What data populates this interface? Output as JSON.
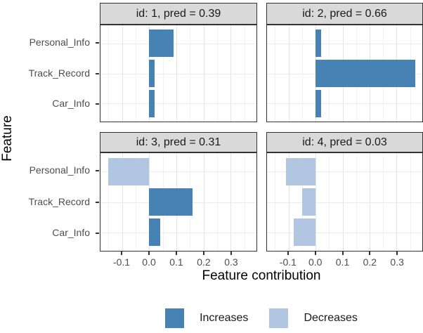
{
  "y_axis_title": "Feature",
  "x_axis_title": "Feature contribution",
  "x_tick_labels": [
    "-0.1",
    "0.0",
    "0.1",
    "0.2",
    "0.3"
  ],
  "colors": {
    "increase": "#4682b4",
    "decrease": "#b1c6e0",
    "strip_bg": "#d9d9d9",
    "border": "#333333",
    "grid_major": "#e4e4e4",
    "grid_minor": "#f2f2f2",
    "axis_text": "#4d4d4d"
  },
  "legend": [
    {
      "label": "Increases",
      "type": "increase"
    },
    {
      "label": "Decreases",
      "type": "decrease"
    }
  ],
  "chart_data": {
    "type": "bar",
    "orientation": "horizontal",
    "title": "",
    "xlabel": "Feature contribution",
    "ylabel": "Feature",
    "categories": [
      "Personal_Info",
      "Track_Record",
      "Car_Info"
    ],
    "x_axis_ticks": [
      -0.1,
      0.0,
      0.1,
      0.2,
      0.3
    ],
    "xlim": [
      -0.1795,
      0.3949
    ],
    "grid": {
      "major": [
        -0.1,
        0.0,
        0.1,
        0.2,
        0.3
      ],
      "minor": [
        -0.15,
        -0.05,
        0.05,
        0.15,
        0.25,
        0.35
      ]
    },
    "legend_position": "bottom",
    "facets": [
      {
        "id": 1,
        "pred": 0.39,
        "title": "id: 1, pred = 0.39",
        "values": [
          0.09,
          0.02,
          0.02
        ]
      },
      {
        "id": 2,
        "pred": 0.66,
        "title": "id: 2, pred = 0.66",
        "values": [
          0.02,
          0.37,
          0.02
        ]
      },
      {
        "id": 3,
        "pred": 0.31,
        "title": "id: 3, pred = 0.31",
        "values": [
          -0.15,
          0.16,
          0.04
        ]
      },
      {
        "id": 4,
        "pred": 0.03,
        "title": "id: 4, pred = 0.03",
        "values": [
          -0.11,
          -0.05,
          -0.08
        ]
      }
    ]
  }
}
